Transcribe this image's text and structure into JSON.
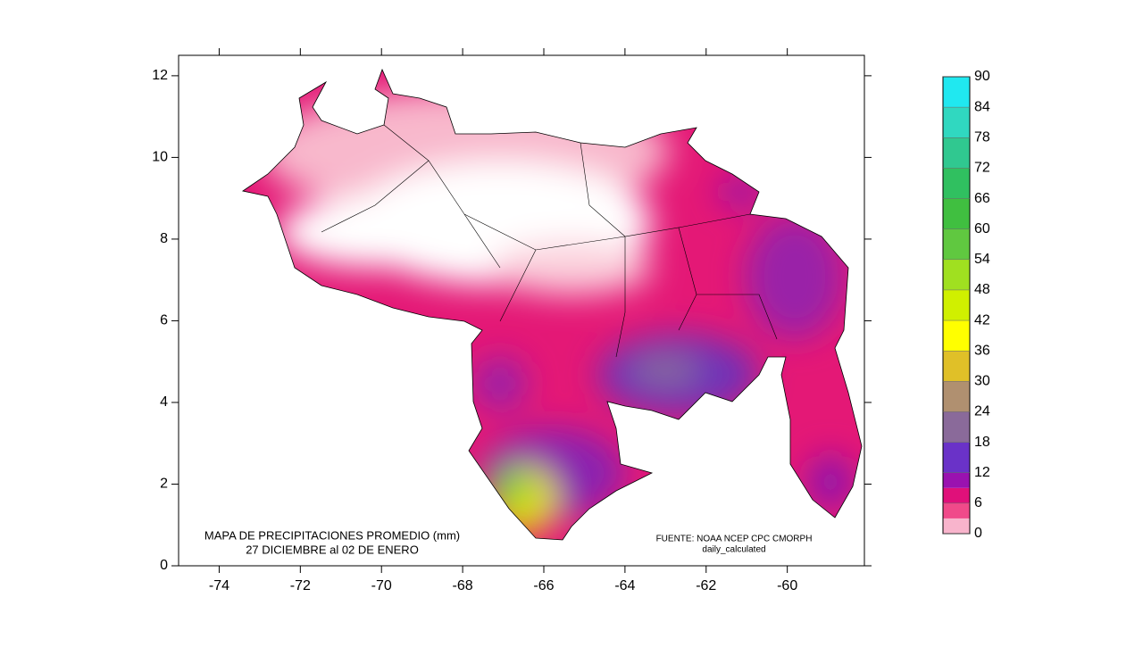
{
  "map": {
    "xlim": [
      -75,
      -58.1
    ],
    "ylim": [
      0,
      12.5
    ],
    "xticks": [
      -74,
      -72,
      -70,
      -68,
      -66,
      -64,
      -62,
      -60
    ],
    "yticks": [
      0,
      2,
      4,
      6,
      8,
      10,
      12
    ],
    "title_lines": [
      "MAPA DE PRECIPITACIONES PROMEDIO (mm)",
      "27 DICIEMBRE al 02 DE ENERO"
    ],
    "source_lines": [
      "FUENTE: NOAA NCEP CPC CMORPH",
      "daily_calculated"
    ]
  },
  "colorbar": {
    "range": [
      0,
      90
    ],
    "ticks": [
      0,
      6,
      12,
      18,
      24,
      30,
      36,
      42,
      48,
      54,
      60,
      66,
      72,
      78,
      84,
      90
    ],
    "stops": [
      {
        "value": 0,
        "color": "#ffffff"
      },
      {
        "value": 3,
        "color": "#f8b4cc"
      },
      {
        "value": 6,
        "color": "#f04a8a"
      },
      {
        "value": 9,
        "color": "#e0107a"
      },
      {
        "value": 12,
        "color": "#9a12b0"
      },
      {
        "value": 18,
        "color": "#6a32c8"
      },
      {
        "value": 24,
        "color": "#8a6a9a"
      },
      {
        "value": 30,
        "color": "#b09070"
      },
      {
        "value": 36,
        "color": "#e0c028"
      },
      {
        "value": 42,
        "color": "#ffff00"
      },
      {
        "value": 48,
        "color": "#d0f000"
      },
      {
        "value": 54,
        "color": "#a0e020"
      },
      {
        "value": 60,
        "color": "#60c840"
      },
      {
        "value": 66,
        "color": "#40bf40"
      },
      {
        "value": 72,
        "color": "#30c060"
      },
      {
        "value": 78,
        "color": "#30c890"
      },
      {
        "value": 84,
        "color": "#30d8c0"
      },
      {
        "value": 90,
        "color": "#20e8f0"
      }
    ]
  }
}
